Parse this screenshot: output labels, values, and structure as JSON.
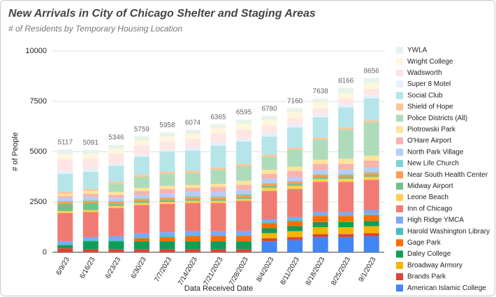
{
  "chart_data": {
    "type": "stacked_bar",
    "title": "New Arrivals in City of Chicago Shelter and Staging Areas",
    "subtitle": "# of Residents by Temporary Housing Location",
    "y_label": "# of People",
    "x_label": "Data Received Date",
    "categories": [
      "6/9/23",
      "6/16/23",
      "6/23/23",
      "6/30/23",
      "7/7/2023",
      "7/14/2023",
      "7/21/2023",
      "7/28/2023",
      "8/4/2023",
      "8/11/2023",
      "8/18/2023",
      "8/25/2023",
      "9/1/2023"
    ],
    "totals": [
      5117,
      5091,
      5346,
      5759,
      5958,
      6074,
      6365,
      6595,
      6780,
      7160,
      7638,
      8166,
      8656
    ],
    "ylim": [
      0,
      10000
    ],
    "yticks": [
      0,
      2500,
      5000,
      7500,
      10000
    ],
    "grid": true,
    "legend": "right",
    "series": [
      {
        "name": "American Islamic College",
        "color": "#4285f4",
        "values": [
          0,
          0,
          0,
          0,
          0,
          0,
          0,
          0,
          550,
          600,
          750,
          750,
          800
        ]
      },
      {
        "name": "Brands Park",
        "color": "#db4437",
        "values": [
          200,
          150,
          150,
          150,
          150,
          150,
          150,
          150,
          150,
          150,
          150,
          150,
          150
        ]
      },
      {
        "name": "Broadway Armory",
        "color": "#f4b400",
        "values": [
          0,
          0,
          0,
          0,
          0,
          0,
          0,
          0,
          250,
          300,
          350,
          350,
          350
        ]
      },
      {
        "name": "Daley College",
        "color": "#0f9d58",
        "values": [
          150,
          400,
          400,
          400,
          400,
          400,
          400,
          400,
          250,
          250,
          250,
          250,
          250
        ]
      },
      {
        "name": "Gage Park",
        "color": "#ff6d01",
        "values": [
          0,
          0,
          0,
          150,
          200,
          250,
          250,
          250,
          250,
          250,
          300,
          300,
          300
        ]
      },
      {
        "name": "Harold Washington Library",
        "color": "#46bdc6",
        "values": [
          50,
          50,
          50,
          50,
          50,
          50,
          50,
          50,
          50,
          50,
          50,
          50,
          50
        ]
      },
      {
        "name": "High Ridge YMCA",
        "color": "#7baaf7",
        "values": [
          150,
          150,
          200,
          200,
          200,
          200,
          200,
          200,
          150,
          150,
          150,
          150,
          200
        ]
      },
      {
        "name": "Inn of Chicago",
        "color": "#f07b72",
        "values": [
          1400,
          1250,
          1400,
          1400,
          1400,
          1400,
          1400,
          1500,
          1400,
          1400,
          1500,
          1500,
          1500
        ]
      },
      {
        "name": "Leone Beach",
        "color": "#fcd04f",
        "values": [
          100,
          100,
          100,
          100,
          100,
          100,
          100,
          100,
          150,
          150,
          150,
          150,
          150
        ]
      },
      {
        "name": "Midway Airport",
        "color": "#71c287",
        "values": [
          350,
          350,
          100,
          100,
          100,
          100,
          100,
          100,
          100,
          100,
          100,
          100,
          100
        ]
      },
      {
        "name": "Near South Health Center",
        "color": "#ff994d",
        "values": [
          100,
          100,
          100,
          100,
          100,
          100,
          100,
          100,
          100,
          100,
          100,
          100,
          100
        ]
      },
      {
        "name": "New Life Church",
        "color": "#7ed1d7",
        "values": [
          50,
          50,
          50,
          50,
          50,
          50,
          50,
          50,
          50,
          50,
          50,
          50,
          50
        ]
      },
      {
        "name": "North Park Village",
        "color": "#b3cefb",
        "values": [
          150,
          150,
          150,
          150,
          200,
          200,
          200,
          200,
          200,
          200,
          200,
          200,
          200
        ]
      },
      {
        "name": "O'Hare Airport",
        "color": "#f7b4ae",
        "values": [
          100,
          150,
          150,
          200,
          200,
          200,
          250,
          250,
          250,
          300,
          300,
          300,
          350
        ]
      },
      {
        "name": "Piotrowski Park",
        "color": "#fde49b",
        "values": [
          100,
          150,
          150,
          150,
          150,
          150,
          150,
          200,
          200,
          200,
          200,
          250,
          250
        ]
      },
      {
        "name": "Police Districts (All)",
        "color": "#aedcba",
        "values": [
          0,
          0,
          400,
          550,
          600,
          600,
          700,
          750,
          650,
          850,
          1000,
          1450,
          1650
        ]
      },
      {
        "name": "Shield of Hope",
        "color": "#ffc599",
        "values": [
          100,
          100,
          100,
          100,
          100,
          100,
          100,
          100,
          100,
          100,
          100,
          100,
          100
        ]
      },
      {
        "name": "Social Club",
        "color": "#b5e5e8",
        "values": [
          900,
          850,
          800,
          900,
          1000,
          1000,
          1100,
          1100,
          900,
          1000,
          1000,
          1000,
          1100
        ]
      },
      {
        "name": "Super 8 Motel",
        "color": "#e6effd",
        "values": [
          150,
          150,
          100,
          100,
          100,
          150,
          150,
          150,
          150,
          150,
          150,
          150,
          150
        ]
      },
      {
        "name": "Wadsworth",
        "color": "#fde6e4",
        "values": [
          567,
          491,
          496,
          459,
          408,
          424,
          465,
          445,
          380,
          310,
          288,
          266,
          306
        ]
      },
      {
        "name": "Wright College",
        "color": "#fff6dc",
        "values": [
          250,
          250,
          250,
          250,
          250,
          250,
          250,
          300,
          300,
          300,
          300,
          300,
          300
        ]
      },
      {
        "name": "YWLA",
        "color": "#e6f3e9",
        "values": [
          250,
          200,
          200,
          200,
          200,
          200,
          200,
          200,
          200,
          200,
          200,
          250,
          250
        ]
      }
    ]
  }
}
